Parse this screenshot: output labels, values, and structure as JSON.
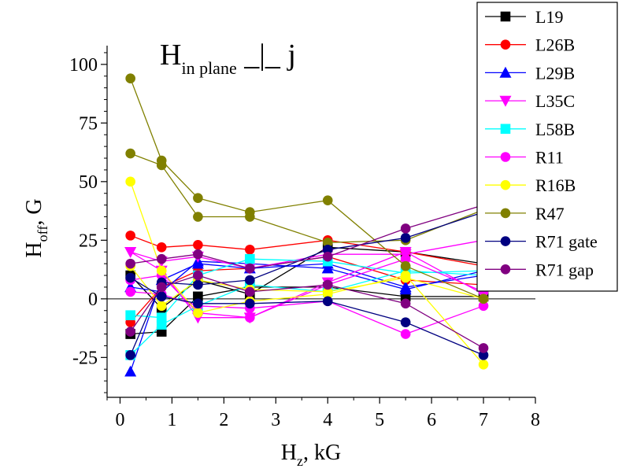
{
  "chart_data": {
    "type": "line",
    "title": "",
    "annotation": {
      "main": "H",
      "subscript": "in plane",
      "suffix": " _|_ j"
    },
    "xlabel": {
      "main": "H",
      "sub": "z",
      "rest": ", kG"
    },
    "ylabel": {
      "main": "H",
      "sub": "off",
      "rest": ", G"
    },
    "xlim": [
      -0.25,
      8
    ],
    "ylim": [
      -42,
      108
    ],
    "x_ticks": [
      0,
      1,
      2,
      3,
      4,
      5,
      6,
      7,
      8
    ],
    "y_ticks": [
      -25,
      0,
      25,
      50,
      75,
      100
    ],
    "zero_line": true,
    "grid": false,
    "legend_position": "top-right, outside plot",
    "series": [
      {
        "name": "L19",
        "color": "#000000",
        "marker": "square",
        "lines": [
          [
            [
              0.2,
              -15
            ],
            [
              0.8,
              -14
            ],
            [
              1.5,
              1
            ],
            [
              2.5,
              5
            ],
            [
              4.0,
              5
            ],
            [
              5.5,
              1
            ],
            [
              7.0,
              1
            ]
          ],
          [
            [
              0.2,
              10
            ],
            [
              0.8,
              -4
            ],
            [
              1.5,
              8
            ],
            [
              2.5,
              2
            ],
            [
              4.0,
              22
            ],
            [
              5.5,
              20
            ],
            [
              7.0,
              15
            ]
          ]
        ]
      },
      {
        "name": "L26B",
        "color": "#ff0000",
        "marker": "circle",
        "lines": [
          [
            [
              0.2,
              27
            ],
            [
              0.8,
              22
            ],
            [
              1.5,
              23
            ],
            [
              2.5,
              21
            ],
            [
              4.0,
              25
            ],
            [
              5.5,
              20
            ],
            [
              7.0,
              14
            ]
          ],
          [
            [
              0.2,
              -10
            ],
            [
              0.8,
              5
            ],
            [
              1.5,
              12
            ],
            [
              2.5,
              13
            ],
            [
              4.0,
              18
            ],
            [
              5.5,
              8
            ],
            [
              7.0,
              6
            ]
          ]
        ]
      },
      {
        "name": "L29B",
        "color": "#0000ff",
        "marker": "triangle-up",
        "lines": [
          [
            [
              0.2,
              -31
            ],
            [
              0.8,
              8
            ],
            [
              1.5,
              15
            ],
            [
              2.5,
              13
            ],
            [
              4.0,
              15
            ],
            [
              5.5,
              5
            ],
            [
              7.0,
              10
            ]
          ],
          [
            [
              0.2,
              5
            ],
            [
              0.8,
              3
            ],
            [
              1.5,
              16
            ],
            [
              2.5,
              15
            ],
            [
              4.0,
              13
            ],
            [
              5.5,
              4
            ],
            [
              7.0,
              12
            ]
          ]
        ]
      },
      {
        "name": "L35C",
        "color": "#ff00ff",
        "marker": "triangle-down",
        "lines": [
          [
            [
              0.2,
              20
            ],
            [
              0.8,
              12
            ],
            [
              1.5,
              -8
            ],
            [
              2.5,
              -8
            ],
            [
              4.0,
              7
            ],
            [
              5.5,
              20
            ],
            [
              7.0,
              2
            ]
          ],
          [
            [
              0.2,
              20
            ],
            [
              0.8,
              16
            ],
            [
              1.5,
              18
            ],
            [
              2.5,
              13
            ],
            [
              4.0,
              19
            ],
            [
              5.5,
              19
            ],
            [
              7.0,
              25
            ]
          ]
        ]
      },
      {
        "name": "L58B",
        "color": "#00ffff",
        "marker": "square",
        "lines": [
          [
            [
              0.2,
              -7
            ],
            [
              0.8,
              -8
            ],
            [
              1.5,
              10
            ],
            [
              2.5,
              17
            ],
            [
              4.0,
              16
            ],
            [
              5.5,
              11
            ],
            [
              7.0,
              12
            ]
          ],
          [
            [
              0.2,
              -24
            ],
            [
              0.8,
              -11
            ],
            [
              1.5,
              -3
            ],
            [
              2.5,
              6
            ],
            [
              4.0,
              3
            ],
            [
              5.5,
              12
            ],
            [
              7.0,
              10
            ]
          ]
        ]
      },
      {
        "name": "R11",
        "color": "#ff00ff",
        "marker": "circle",
        "lines": [
          [
            [
              0.2,
              3
            ],
            [
              0.8,
              2
            ],
            [
              1.5,
              -3
            ],
            [
              2.5,
              -4
            ],
            [
              4.0,
              -1
            ],
            [
              5.5,
              -15
            ],
            [
              7.0,
              -3
            ]
          ],
          [
            [
              0.2,
              8
            ],
            [
              0.8,
              10
            ],
            [
              1.5,
              -6
            ],
            [
              2.5,
              -8
            ],
            [
              4.0,
              6
            ],
            [
              5.5,
              17
            ],
            [
              7.0,
              3
            ]
          ]
        ]
      },
      {
        "name": "R16B",
        "color": "#ffff00",
        "marker": "circle",
        "lines": [
          [
            [
              0.2,
              50
            ],
            [
              0.8,
              12
            ],
            [
              1.5,
              -6
            ],
            [
              2.5,
              -1
            ],
            [
              4.0,
              2
            ],
            [
              5.5,
              10
            ],
            [
              7.0,
              -28
            ]
          ],
          [
            [
              0.2,
              14
            ],
            [
              0.8,
              -3
            ],
            [
              1.5,
              8
            ],
            [
              2.5,
              4
            ],
            [
              4.0,
              3
            ],
            [
              5.5,
              9
            ],
            [
              7.0,
              0
            ]
          ]
        ]
      },
      {
        "name": "R47",
        "color": "#808000",
        "marker": "circle",
        "lines": [
          [
            [
              0.2,
              94
            ],
            [
              0.8,
              59
            ],
            [
              1.5,
              43
            ],
            [
              2.5,
              37
            ],
            [
              4.0,
              42
            ],
            [
              5.5,
              14
            ],
            [
              7.0,
              0
            ]
          ],
          [
            [
              0.2,
              62
            ],
            [
              0.8,
              57
            ],
            [
              1.5,
              35
            ],
            [
              2.5,
              35
            ],
            [
              4.0,
              24
            ],
            [
              5.5,
              25
            ],
            [
              7.0,
              38
            ]
          ]
        ]
      },
      {
        "name": "R71 gate",
        "color": "#000080",
        "marker": "circle",
        "lines": [
          [
            [
              0.2,
              -24
            ],
            [
              0.8,
              7
            ],
            [
              1.5,
              6
            ],
            [
              2.5,
              8
            ],
            [
              4.0,
              21
            ],
            [
              5.5,
              26
            ],
            [
              7.0,
              37
            ]
          ],
          [
            [
              0.2,
              9
            ],
            [
              0.8,
              1
            ],
            [
              1.5,
              -2
            ],
            [
              2.5,
              -2
            ],
            [
              4.0,
              -1
            ],
            [
              5.5,
              -10
            ],
            [
              7.0,
              -24
            ]
          ]
        ]
      },
      {
        "name": "R71 gap",
        "color": "#800080",
        "marker": "circle",
        "lines": [
          [
            [
              0.2,
              15
            ],
            [
              0.8,
              17
            ],
            [
              1.5,
              19
            ],
            [
              2.5,
              13
            ],
            [
              4.0,
              18
            ],
            [
              5.5,
              30
            ],
            [
              7.0,
              40
            ]
          ],
          [
            [
              0.2,
              -14
            ],
            [
              0.8,
              5
            ],
            [
              1.5,
              10
            ],
            [
              2.5,
              3
            ],
            [
              4.0,
              6
            ],
            [
              5.5,
              -2
            ],
            [
              7.0,
              -21
            ]
          ]
        ]
      }
    ]
  }
}
